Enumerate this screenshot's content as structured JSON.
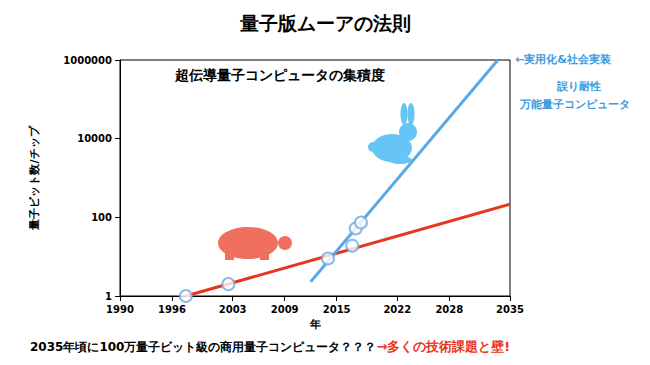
{
  "chart_data": {
    "type": "line",
    "title": "量子版ムーアの法則",
    "subtitle": "超伝導量子コンピュータの集積度",
    "xlabel": "年",
    "ylabel": "量子ビット数/チップ",
    "log": "y",
    "grid": false,
    "xlim": [
      1990,
      2035
    ],
    "xticks": [
      1990,
      1996,
      2003,
      2009,
      2015,
      2022,
      2028,
      2035
    ],
    "ylim": [
      1,
      1000000
    ],
    "yticks": [
      1,
      100,
      10000,
      1000000
    ],
    "series": [
      {
        "type": "scatter",
        "color": "#6fa8dc",
        "marker": "circle-open",
        "x": [
          1997.6,
          2002.5,
          2014,
          2016.8,
          2017.2,
          2017.8
        ],
        "values": [
          1,
          2,
          9,
          19,
          52,
          74
        ]
      },
      {
        "type": "line",
        "color": "#e8351f",
        "line_style": "solid",
        "x": [
          1997.6,
          2035
        ],
        "values": [
          1,
          216
        ]
      },
      {
        "type": "line",
        "color": "#5aa9e6",
        "line_style": "solid",
        "x": [
          2012,
          2033.6
        ],
        "values": [
          2.3,
          1000000
        ]
      }
    ],
    "annotations": [
      {
        "text": "←実用化&社会実装",
        "color": "#3d9be0"
      },
      {
        "text": "誤り耐性",
        "color": "#3d9be0"
      },
      {
        "text": "万能量子コンピュータ",
        "color": "#3d9be0"
      },
      {
        "text": "2035年頃に100万量子ビット級の商用量子コンピュータ？？？",
        "color": "#000000"
      },
      {
        "text": "→多くの技術課題と壁!",
        "color": "#e8351f"
      }
    ]
  }
}
